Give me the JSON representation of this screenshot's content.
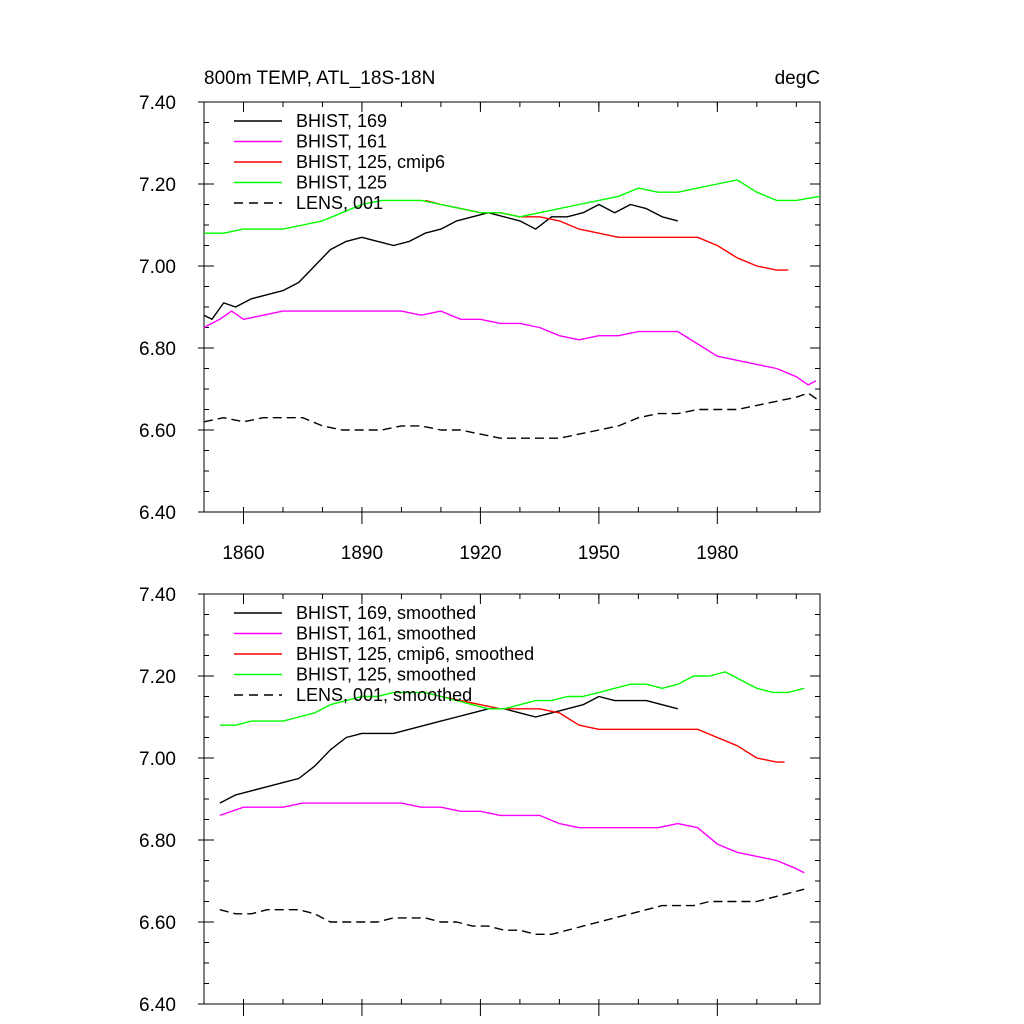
{
  "chart_data": [
    {
      "type": "line",
      "title_left": "800m TEMP, ATL_18S-18N",
      "title_right": "degC",
      "xlim": [
        1850,
        2006
      ],
      "ylim": [
        6.4,
        7.4
      ],
      "x_ticks": [
        "1860",
        "1890",
        "1920",
        "1950",
        "1980"
      ],
      "y_ticks": [
        "7.40",
        "7.20",
        "7.00",
        "6.80",
        "6.60",
        "6.40"
      ],
      "legend_placement": "top-left",
      "series": [
        {
          "name": "BHIST, 169",
          "color": "#000000",
          "dash": false,
          "x": [
            1850,
            1852,
            1855,
            1858,
            1862,
            1866,
            1870,
            1874,
            1878,
            1882,
            1886,
            1890,
            1894,
            1898,
            1902,
            1906,
            1910,
            1914,
            1918,
            1922,
            1926,
            1930,
            1934,
            1938,
            1942,
            1946,
            1950,
            1954,
            1958,
            1962,
            1966,
            1970
          ],
          "y": [
            6.88,
            6.87,
            6.91,
            6.9,
            6.92,
            6.93,
            6.94,
            6.96,
            7.0,
            7.04,
            7.06,
            7.07,
            7.06,
            7.05,
            7.06,
            7.08,
            7.09,
            7.11,
            7.12,
            7.13,
            7.12,
            7.11,
            7.09,
            7.12,
            7.12,
            7.13,
            7.15,
            7.13,
            7.15,
            7.14,
            7.12,
            7.11
          ]
        },
        {
          "name": "BHIST, 161",
          "color": "#ff00ff",
          "dash": false,
          "x": [
            1850,
            1852,
            1854,
            1857,
            1860,
            1865,
            1870,
            1875,
            1880,
            1885,
            1890,
            1895,
            1900,
            1905,
            1910,
            1915,
            1920,
            1925,
            1930,
            1935,
            1940,
            1945,
            1950,
            1955,
            1960,
            1965,
            1970,
            1975,
            1980,
            1985,
            1990,
            1995,
            2000,
            2003,
            2005
          ],
          "y": [
            6.85,
            6.86,
            6.87,
            6.89,
            6.87,
            6.88,
            6.89,
            6.89,
            6.89,
            6.89,
            6.89,
            6.89,
            6.89,
            6.88,
            6.89,
            6.87,
            6.87,
            6.86,
            6.86,
            6.85,
            6.83,
            6.82,
            6.83,
            6.83,
            6.84,
            6.84,
            6.84,
            6.81,
            6.78,
            6.77,
            6.76,
            6.75,
            6.73,
            6.71,
            6.72
          ]
        },
        {
          "name": "BHIST, 125, cmip6",
          "color": "#ff0000",
          "dash": false,
          "x": [
            1906,
            1910,
            1915,
            1920,
            1925,
            1930,
            1935,
            1940,
            1945,
            1950,
            1955,
            1960,
            1965,
            1970,
            1975,
            1980,
            1985,
            1990,
            1995,
            1998
          ],
          "y": [
            7.16,
            7.15,
            7.14,
            7.13,
            7.13,
            7.12,
            7.12,
            7.11,
            7.09,
            7.08,
            7.07,
            7.07,
            7.07,
            7.07,
            7.07,
            7.05,
            7.02,
            7.0,
            6.99,
            6.99
          ]
        },
        {
          "name": "BHIST, 125",
          "color": "#00ff00",
          "dash": false,
          "x": [
            1850,
            1855,
            1860,
            1865,
            1870,
            1875,
            1880,
            1885,
            1890,
            1895,
            1900,
            1905,
            1910,
            1915,
            1920,
            1925,
            1930,
            1935,
            1940,
            1945,
            1950,
            1955,
            1960,
            1965,
            1970,
            1975,
            1980,
            1985,
            1990,
            1995,
            2000,
            2006
          ],
          "y": [
            7.08,
            7.08,
            7.09,
            7.09,
            7.09,
            7.1,
            7.11,
            7.13,
            7.15,
            7.16,
            7.16,
            7.16,
            7.15,
            7.14,
            7.13,
            7.13,
            7.12,
            7.13,
            7.14,
            7.15,
            7.16,
            7.17,
            7.19,
            7.18,
            7.18,
            7.19,
            7.2,
            7.21,
            7.18,
            7.16,
            7.16,
            7.17
          ]
        },
        {
          "name": "LENS, 001",
          "color": "#000000",
          "dash": true,
          "x": [
            1850,
            1855,
            1860,
            1865,
            1870,
            1875,
            1880,
            1885,
            1890,
            1895,
            1900,
            1905,
            1910,
            1915,
            1920,
            1925,
            1930,
            1935,
            1940,
            1945,
            1950,
            1955,
            1960,
            1965,
            1970,
            1975,
            1980,
            1985,
            1990,
            1995,
            2000,
            2003,
            2006
          ],
          "y": [
            6.62,
            6.63,
            6.62,
            6.63,
            6.63,
            6.63,
            6.61,
            6.6,
            6.6,
            6.6,
            6.61,
            6.61,
            6.6,
            6.6,
            6.59,
            6.58,
            6.58,
            6.58,
            6.58,
            6.59,
            6.6,
            6.61,
            6.63,
            6.64,
            6.64,
            6.65,
            6.65,
            6.65,
            6.66,
            6.67,
            6.68,
            6.69,
            6.67
          ]
        }
      ]
    },
    {
      "type": "line",
      "xlim": [
        1850,
        2006
      ],
      "ylim": [
        6.4,
        7.4
      ],
      "y_ticks": [
        "7.40",
        "7.20",
        "7.00",
        "6.80",
        "6.60",
        "6.40"
      ],
      "legend_placement": "top-left",
      "series": [
        {
          "name": "BHIST, 169, smoothed",
          "color": "#000000",
          "dash": false,
          "x": [
            1854,
            1858,
            1862,
            1866,
            1870,
            1874,
            1878,
            1882,
            1886,
            1890,
            1894,
            1898,
            1902,
            1906,
            1910,
            1914,
            1918,
            1922,
            1926,
            1930,
            1934,
            1938,
            1942,
            1946,
            1950,
            1954,
            1958,
            1962,
            1966,
            1970
          ],
          "y": [
            6.89,
            6.91,
            6.92,
            6.93,
            6.94,
            6.95,
            6.98,
            7.02,
            7.05,
            7.06,
            7.06,
            7.06,
            7.07,
            7.08,
            7.09,
            7.1,
            7.11,
            7.12,
            7.12,
            7.11,
            7.1,
            7.11,
            7.12,
            7.13,
            7.15,
            7.14,
            7.14,
            7.14,
            7.13,
            7.12
          ]
        },
        {
          "name": "BHIST, 161, smoothed",
          "color": "#ff00ff",
          "dash": false,
          "x": [
            1854,
            1857,
            1860,
            1865,
            1870,
            1875,
            1880,
            1885,
            1890,
            1895,
            1900,
            1905,
            1910,
            1915,
            1920,
            1925,
            1930,
            1935,
            1940,
            1945,
            1950,
            1955,
            1960,
            1965,
            1970,
            1975,
            1980,
            1985,
            1990,
            1995,
            2000,
            2002
          ],
          "y": [
            6.86,
            6.87,
            6.88,
            6.88,
            6.88,
            6.89,
            6.89,
            6.89,
            6.89,
            6.89,
            6.89,
            6.88,
            6.88,
            6.87,
            6.87,
            6.86,
            6.86,
            6.86,
            6.84,
            6.83,
            6.83,
            6.83,
            6.83,
            6.83,
            6.84,
            6.83,
            6.79,
            6.77,
            6.76,
            6.75,
            6.73,
            6.72
          ]
        },
        {
          "name": "BHIST, 125, cmip6, smoothed",
          "color": "#ff0000",
          "dash": false,
          "x": [
            1906,
            1910,
            1915,
            1920,
            1925,
            1930,
            1935,
            1940,
            1945,
            1950,
            1955,
            1960,
            1965,
            1970,
            1975,
            1980,
            1985,
            1990,
            1995,
            1997
          ],
          "y": [
            7.16,
            7.15,
            7.14,
            7.13,
            7.12,
            7.12,
            7.12,
            7.11,
            7.08,
            7.07,
            7.07,
            7.07,
            7.07,
            7.07,
            7.07,
            7.05,
            7.03,
            7.0,
            6.99,
            6.99
          ]
        },
        {
          "name": "BHIST, 125, smoothed",
          "color": "#00ff00",
          "dash": false,
          "x": [
            1854,
            1858,
            1862,
            1866,
            1870,
            1874,
            1878,
            1882,
            1886,
            1890,
            1894,
            1898,
            1902,
            1906,
            1910,
            1914,
            1918,
            1922,
            1926,
            1930,
            1934,
            1938,
            1942,
            1946,
            1950,
            1954,
            1958,
            1962,
            1966,
            1970,
            1974,
            1978,
            1982,
            1986,
            1990,
            1994,
            1998,
            2002
          ],
          "y": [
            7.08,
            7.08,
            7.09,
            7.09,
            7.09,
            7.1,
            7.11,
            7.13,
            7.14,
            7.15,
            7.15,
            7.16,
            7.16,
            7.16,
            7.15,
            7.14,
            7.13,
            7.12,
            7.12,
            7.13,
            7.14,
            7.14,
            7.15,
            7.15,
            7.16,
            7.17,
            7.18,
            7.18,
            7.17,
            7.18,
            7.2,
            7.2,
            7.21,
            7.19,
            7.17,
            7.16,
            7.16,
            7.17
          ]
        },
        {
          "name": "LENS, 001, smoothed",
          "color": "#000000",
          "dash": true,
          "x": [
            1854,
            1858,
            1862,
            1866,
            1870,
            1874,
            1878,
            1882,
            1886,
            1890,
            1894,
            1898,
            1902,
            1906,
            1910,
            1914,
            1918,
            1922,
            1926,
            1930,
            1934,
            1938,
            1942,
            1946,
            1950,
            1954,
            1958,
            1962,
            1966,
            1970,
            1974,
            1978,
            1982,
            1986,
            1990,
            1994,
            1998,
            2002
          ],
          "y": [
            6.63,
            6.62,
            6.62,
            6.63,
            6.63,
            6.63,
            6.62,
            6.6,
            6.6,
            6.6,
            6.6,
            6.61,
            6.61,
            6.61,
            6.6,
            6.6,
            6.59,
            6.59,
            6.58,
            6.58,
            6.57,
            6.57,
            6.58,
            6.59,
            6.6,
            6.61,
            6.62,
            6.63,
            6.64,
            6.64,
            6.64,
            6.65,
            6.65,
            6.65,
            6.65,
            6.66,
            6.67,
            6.68
          ]
        }
      ]
    }
  ]
}
